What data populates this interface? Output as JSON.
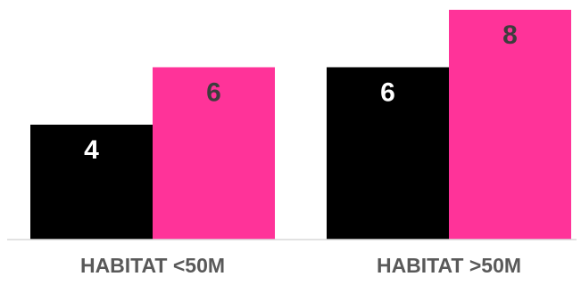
{
  "chart_data": {
    "type": "bar",
    "categories": [
      "HABITAT <50M",
      "HABITAT >50M"
    ],
    "series": [
      {
        "values": [
          4,
          6
        ],
        "color": "#000000",
        "label_color": "#ffffff"
      },
      {
        "values": [
          6,
          8
        ],
        "color": "#ff3399",
        "label_color": "#3d3d3d"
      }
    ],
    "ylim": [
      0,
      8
    ],
    "grid": false,
    "legend": "none",
    "colors": {
      "axis": "#d9d9d9",
      "category_label": "#595959"
    }
  }
}
